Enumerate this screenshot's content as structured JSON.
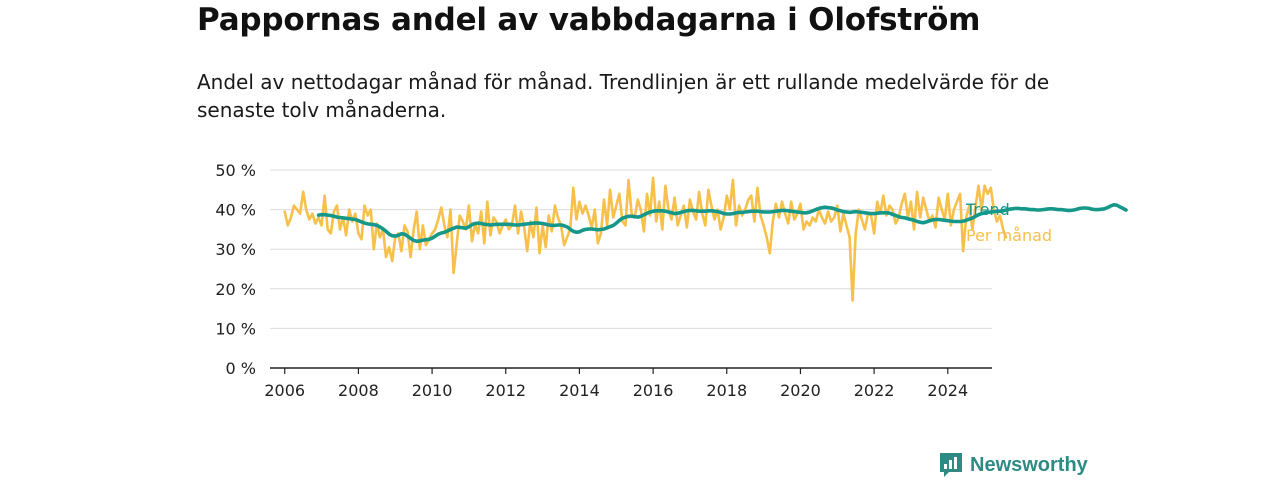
{
  "title": "Pappornas andel av vabbdagarna i Olofström",
  "subtitle": "Andel av nettodagar månad för månad. Trendlinjen är ett rullande medelvärde för de senaste tolv månaderna.",
  "brand": {
    "name": "Newsworthy",
    "icon": "newsworthy-logo-icon",
    "color": "#2e8b84"
  },
  "chart_data": {
    "type": "line",
    "title": "Pappornas andel av vabbdagarna i Olofström",
    "xlabel": "",
    "ylabel": "",
    "xlim": [
      2005.6,
      2025.2
    ],
    "ylim": [
      0,
      50
    ],
    "grid": true,
    "y_ticks": [
      0,
      10,
      20,
      30,
      40,
      50
    ],
    "y_tick_labels": [
      "0 %",
      "10 %",
      "20 %",
      "30 %",
      "40 %",
      "50 %"
    ],
    "x_ticks": [
      2006,
      2008,
      2010,
      2012,
      2014,
      2016,
      2018,
      2020,
      2022,
      2024
    ],
    "x_tick_labels": [
      "2006",
      "2008",
      "2010",
      "2012",
      "2014",
      "2016",
      "2018",
      "2020",
      "2022",
      "2024"
    ],
    "legend_position": "right-end-labels",
    "series": [
      {
        "name": "Per månad",
        "color": "#f7c04a",
        "start": 2006.0,
        "step_months": 1,
        "values": [
          39.5,
          36.0,
          38.0,
          41.0,
          40.0,
          39.0,
          44.5,
          40.0,
          37.5,
          39.0,
          36.5,
          38.0,
          36.0,
          43.5,
          35.0,
          34.0,
          39.5,
          41.0,
          35.0,
          38.0,
          33.5,
          40.0,
          37.0,
          39.0,
          34.0,
          32.5,
          41.0,
          38.5,
          40.0,
          30.0,
          36.5,
          33.0,
          35.0,
          28.0,
          30.5,
          27.0,
          33.0,
          34.0,
          29.5,
          36.0,
          34.5,
          28.0,
          35.0,
          39.5,
          30.0,
          36.0,
          31.0,
          32.5,
          34.0,
          35.0,
          37.5,
          40.5,
          36.0,
          33.0,
          40.0,
          24.0,
          31.0,
          38.5,
          37.0,
          35.0,
          41.0,
          32.0,
          36.5,
          34.0,
          39.5,
          31.5,
          42.0,
          33.5,
          38.0,
          37.0,
          34.0,
          36.0,
          37.5,
          35.0,
          36.0,
          41.0,
          34.0,
          39.5,
          35.5,
          29.5,
          37.0,
          33.0,
          40.5,
          29.0,
          36.0,
          30.5,
          38.5,
          34.5,
          41.0,
          38.0,
          36.0,
          31.0,
          33.0,
          35.0,
          45.5,
          37.5,
          42.0,
          39.0,
          41.0,
          38.5,
          35.5,
          40.0,
          31.5,
          34.0,
          42.5,
          36.0,
          45.0,
          38.0,
          41.0,
          44.0,
          37.0,
          36.0,
          47.5,
          39.0,
          38.0,
          42.5,
          40.0,
          34.5,
          44.0,
          38.5,
          48.0,
          37.0,
          42.0,
          35.0,
          46.0,
          40.0,
          37.5,
          43.0,
          36.0,
          38.5,
          41.0,
          35.5,
          42.5,
          39.5,
          37.5,
          44.5,
          39.0,
          36.0,
          45.0,
          41.0,
          37.5,
          40.0,
          35.0,
          38.0,
          43.5,
          40.0,
          47.5,
          36.0,
          41.0,
          38.5,
          40.0,
          42.5,
          43.5,
          37.0,
          45.5,
          38.5,
          36.0,
          33.0,
          29.0,
          37.0,
          41.5,
          38.0,
          42.0,
          39.0,
          36.5,
          42.0,
          37.5,
          39.0,
          41.5,
          35.0,
          37.0,
          36.0,
          38.0,
          37.0,
          40.0,
          38.0,
          36.5,
          39.5,
          37.0,
          38.0,
          41.0,
          34.5,
          39.0,
          36.0,
          33.0,
          17.0,
          34.0,
          40.0,
          37.5,
          35.0,
          39.0,
          38.5,
          34.0,
          42.0,
          39.0,
          43.5,
          38.5,
          41.0,
          40.0,
          36.5,
          38.0,
          41.5,
          44.0,
          38.0,
          42.0,
          35.0,
          44.5,
          38.0,
          43.0,
          40.0,
          37.0,
          38.5,
          35.5,
          43.0,
          40.0,
          37.5,
          44.0,
          36.0,
          40.0,
          42.0,
          44.0,
          29.5,
          38.0,
          41.0,
          35.0,
          40.5,
          46.0,
          40.0,
          46.0,
          44.0,
          45.5,
          40.0,
          37.0,
          38.5,
          35.0,
          33.0
        ]
      },
      {
        "name": "Trend",
        "color": "#159889",
        "start": 2006.92,
        "step_months": 1,
        "values": [
          38.6,
          38.7,
          38.7,
          38.6,
          38.5,
          38.3,
          38.1,
          38.0,
          37.9,
          37.8,
          37.7,
          37.6,
          37.5,
          37.2,
          36.9,
          36.6,
          36.4,
          36.3,
          36.2,
          36.0,
          35.6,
          35.1,
          34.5,
          33.8,
          33.4,
          33.3,
          33.5,
          33.9,
          33.8,
          33.3,
          32.7,
          32.2,
          32.0,
          32.1,
          32.3,
          32.4,
          32.5,
          32.8,
          33.3,
          33.8,
          34.1,
          34.3,
          34.6,
          35.0,
          35.3,
          35.6,
          35.5,
          35.4,
          35.3,
          35.7,
          36.2,
          36.5,
          36.6,
          36.5,
          36.3,
          36.2,
          36.1,
          36.2,
          36.3,
          36.3,
          36.3,
          36.3,
          36.3,
          36.2,
          36.1,
          36.1,
          36.2,
          36.3,
          36.4,
          36.5,
          36.6,
          36.6,
          36.6,
          36.5,
          36.3,
          36.1,
          36.0,
          36.0,
          36.1,
          36.1,
          35.9,
          35.6,
          35.0,
          34.5,
          34.3,
          34.4,
          34.8,
          35.0,
          35.1,
          35.1,
          35.0,
          34.9,
          35.0,
          35.1,
          35.4,
          35.7,
          36.0,
          36.6,
          37.3,
          37.8,
          38.1,
          38.3,
          38.3,
          38.2,
          38.1,
          38.3,
          38.7,
          39.1,
          39.4,
          39.6,
          39.7,
          39.7,
          39.7,
          39.6,
          39.4,
          39.2,
          39.0,
          39.1,
          39.3,
          39.5,
          39.7,
          39.8,
          39.8,
          39.7,
          39.6,
          39.6,
          39.6,
          39.7,
          39.7,
          39.6,
          39.5,
          39.3,
          39.0,
          38.9,
          38.9,
          39.0,
          39.2,
          39.3,
          39.3,
          39.4,
          39.5,
          39.6,
          39.6,
          39.6,
          39.5,
          39.4,
          39.4,
          39.4,
          39.5,
          39.6,
          39.7,
          39.8,
          39.8,
          39.7,
          39.6,
          39.5,
          39.4,
          39.3,
          39.2,
          39.2,
          39.4,
          39.7,
          40.0,
          40.3,
          40.5,
          40.6,
          40.5,
          40.4,
          40.2,
          39.9,
          39.7,
          39.5,
          39.4,
          39.3,
          39.4,
          39.5,
          39.4,
          39.3,
          39.2,
          39.1,
          39.0,
          39.0,
          39.1,
          39.2,
          39.2,
          39.2,
          39.1,
          38.8,
          38.5,
          38.2,
          38.0,
          37.9,
          37.7,
          37.5,
          37.3,
          37.0,
          36.8,
          36.7,
          36.9,
          37.2,
          37.4,
          37.5,
          37.5,
          37.4,
          37.3,
          37.2,
          37.1,
          37.0,
          37.0,
          37.0,
          37.1,
          37.3,
          37.6,
          37.9,
          38.3,
          38.7,
          39.0,
          39.2,
          39.3,
          39.4,
          39.5,
          39.6,
          39.6,
          39.7,
          39.9,
          40.1,
          40.2,
          40.3,
          40.3,
          40.2,
          40.2,
          40.1,
          40.0,
          40.0,
          39.9,
          39.9,
          40.0,
          40.1,
          40.2,
          40.2,
          40.1,
          40.0,
          40.0,
          39.9,
          39.8,
          39.8,
          39.9,
          40.1,
          40.3,
          40.4,
          40.4,
          40.3,
          40.1,
          40.0,
          40.0,
          40.1,
          40.2,
          40.5,
          40.9,
          41.2,
          41.1,
          40.7,
          40.3,
          39.9
        ]
      }
    ]
  }
}
